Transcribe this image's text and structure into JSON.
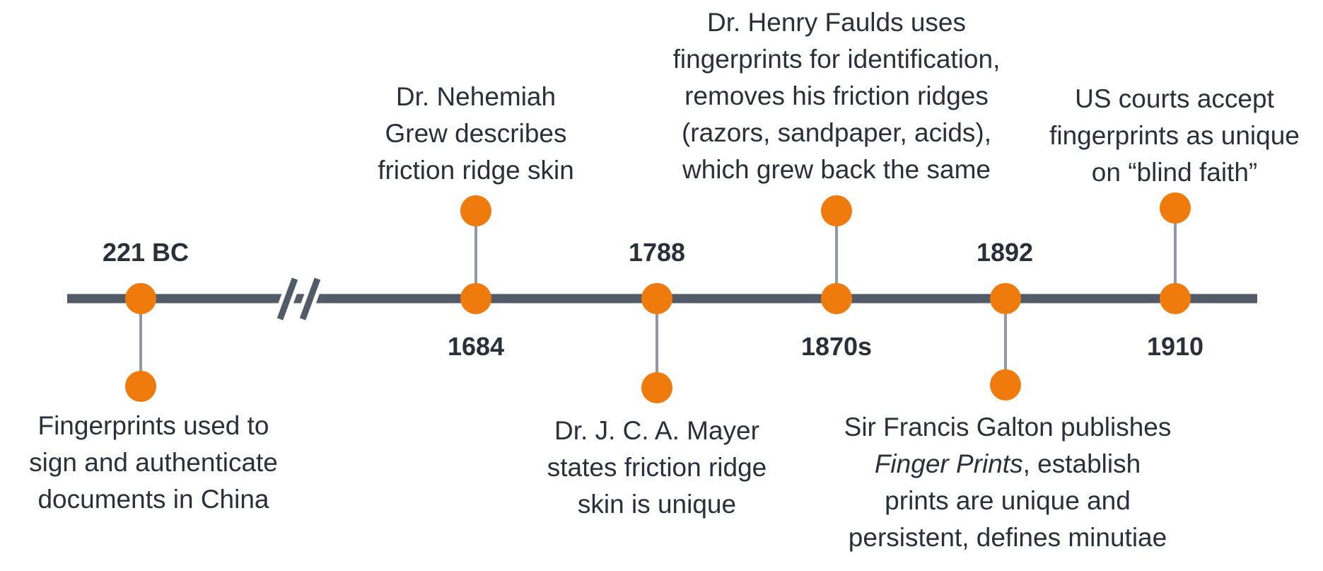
{
  "colors": {
    "axis": "#525b67",
    "marker": "#f07b0d",
    "connector": "#8e98a6",
    "text": "#2b2f38"
  },
  "events": [
    {
      "year": "221 BC",
      "lines": [
        "Fingerprints used to",
        "sign and authenticate",
        "documents in China"
      ]
    },
    {
      "year": "1684",
      "lines": [
        "Dr. Nehemiah",
        "Grew describes",
        "friction ridge skin"
      ]
    },
    {
      "year": "1788",
      "lines": [
        "Dr. J. C. A. Mayer",
        "states friction ridge",
        "skin is unique"
      ]
    },
    {
      "year": "1870s",
      "lines": [
        "Dr. Henry Faulds uses",
        "fingerprints for identification,",
        "removes his friction ridges",
        "(razors, sandpaper, acids),",
        "which grew back the same"
      ]
    },
    {
      "year": "1892",
      "lines": [
        "Sir Francis Galton publishes",
        ", establish",
        "prints are unique and",
        "persistent, defines minutiae"
      ],
      "italic_title": "Finger Prints"
    },
    {
      "year": "1910",
      "lines": [
        "US courts accept",
        "fingerprints as unique",
        "on “blind faith”"
      ]
    }
  ]
}
